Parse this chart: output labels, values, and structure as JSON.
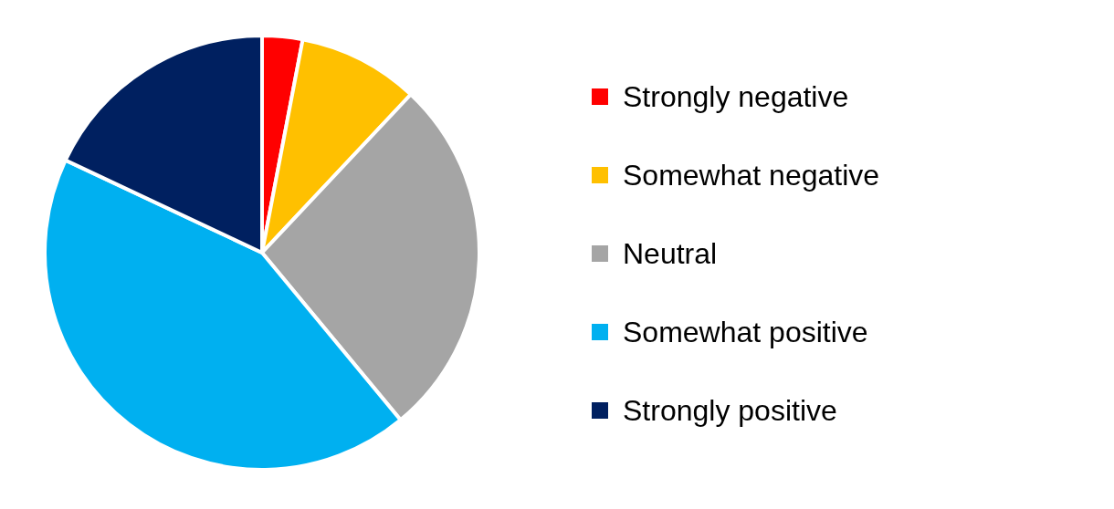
{
  "chart_data": {
    "type": "pie",
    "categories": [
      "Strongly negative",
      "Somewhat negative",
      "Neutral",
      "Somewhat positive",
      "Strongly positive"
    ],
    "values": [
      3,
      9,
      27,
      43,
      18
    ],
    "colors": [
      "#ff0000",
      "#ffc000",
      "#a5a5a5",
      "#00b0f0",
      "#002060"
    ],
    "legend": "right"
  }
}
